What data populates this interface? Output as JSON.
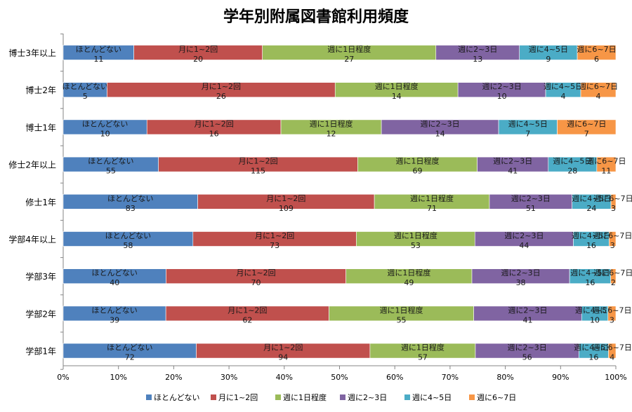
{
  "chart_data": {
    "type": "bar",
    "orientation": "horizontal",
    "stacking": "percent",
    "title": "学年別附属図書館利用頻度",
    "xlabel": "",
    "ylabel": "",
    "xlim": [
      0,
      100
    ],
    "x_ticks": [
      "0%",
      "10%",
      "20%",
      "30%",
      "40%",
      "50%",
      "60%",
      "70%",
      "80%",
      "90%",
      "100%"
    ],
    "grid": false,
    "legend_position": "bottom",
    "categories": [
      "博士3年以上",
      "博士2年",
      "博士1年",
      "修士2年以上",
      "修士1年",
      "学部4年以上",
      "学部3年",
      "学部2年",
      "学部1年"
    ],
    "series": [
      {
        "name": "ほとんどない",
        "color": "#4F81BD",
        "values": [
          11,
          5,
          10,
          55,
          83,
          58,
          40,
          39,
          72
        ]
      },
      {
        "name": "月に1~2回",
        "color": "#C0504D",
        "values": [
          20,
          26,
          16,
          115,
          109,
          73,
          70,
          62,
          94
        ]
      },
      {
        "name": "週に1日程度",
        "color": "#9BBB59",
        "values": [
          27,
          14,
          12,
          69,
          71,
          53,
          49,
          55,
          57
        ]
      },
      {
        "name": "週に2~3日",
        "color": "#8064A2",
        "values": [
          13,
          10,
          14,
          41,
          51,
          44,
          38,
          41,
          56
        ]
      },
      {
        "name": "週に4~5日",
        "color": "#4BACC6",
        "values": [
          9,
          4,
          7,
          28,
          24,
          16,
          16,
          10,
          16
        ]
      },
      {
        "name": "週に6~7日",
        "color": "#F79646",
        "values": [
          6,
          4,
          7,
          11,
          3,
          3,
          2,
          3,
          4
        ]
      }
    ]
  }
}
